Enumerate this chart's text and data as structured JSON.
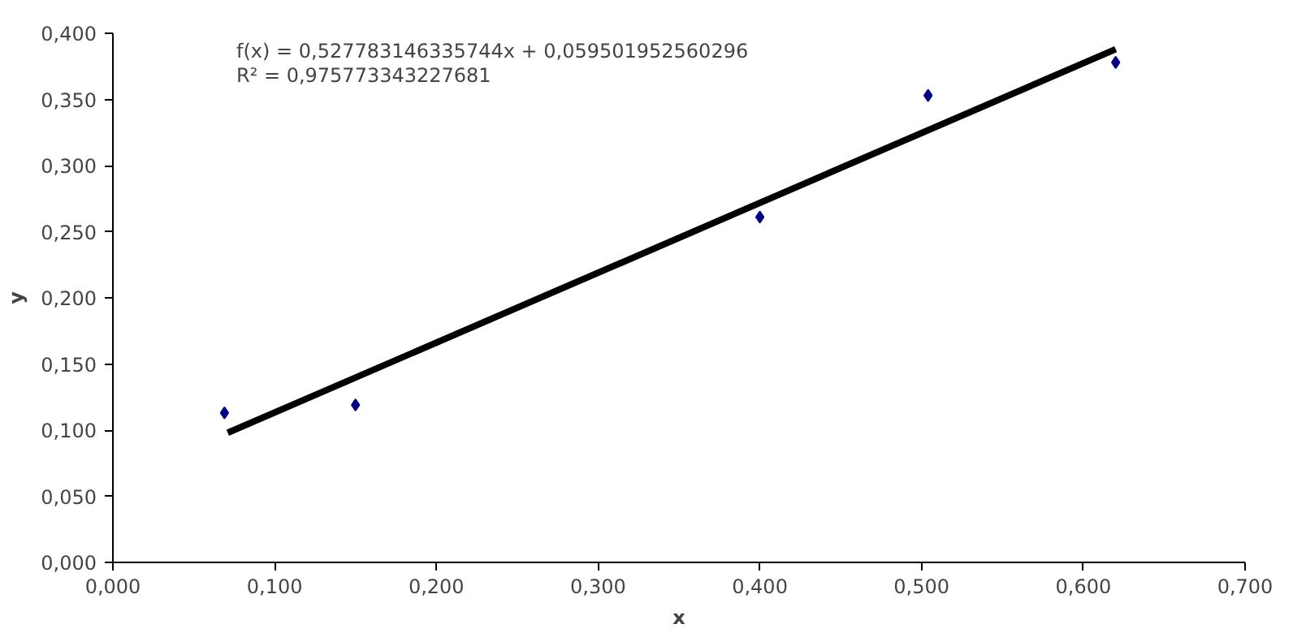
{
  "chart_data": {
    "type": "scatter",
    "xlabel": "x",
    "ylabel": "y",
    "xlim": [
      0,
      0.7
    ],
    "ylim": [
      0,
      0.4
    ],
    "xticks": [
      {
        "value": 0,
        "label": "0,000"
      },
      {
        "value": 0.1,
        "label": "0,100"
      },
      {
        "value": 0.2,
        "label": "0,200"
      },
      {
        "value": 0.3,
        "label": "0,300"
      },
      {
        "value": 0.4,
        "label": "0,400"
      },
      {
        "value": 0.5,
        "label": "0,500"
      },
      {
        "value": 0.6,
        "label": "0,600"
      },
      {
        "value": 0.7,
        "label": "0,700"
      }
    ],
    "yticks": [
      {
        "value": 0,
        "label": "0,000"
      },
      {
        "value": 0.05,
        "label": "0,050"
      },
      {
        "value": 0.1,
        "label": "0,100"
      },
      {
        "value": 0.15,
        "label": "0,150"
      },
      {
        "value": 0.2,
        "label": "0,200"
      },
      {
        "value": 0.25,
        "label": "0,250"
      },
      {
        "value": 0.3,
        "label": "0,300"
      },
      {
        "value": 0.35,
        "label": "0,350"
      },
      {
        "value": 0.4,
        "label": "0,400"
      }
    ],
    "grid": false,
    "marker": "diamond",
    "annotations": [
      "f(x) = 0,527783146335744x + 0,059501952560296",
      "R² = 0,975773343227681"
    ],
    "series": [
      {
        "color": "#000080",
        "x": [
          0.069,
          0.15,
          0.4,
          0.504,
          0.62
        ],
        "values": [
          0.113,
          0.119,
          0.261,
          0.353,
          0.378
        ]
      },
      {
        "type": "line",
        "marker": "none",
        "color": "#000000",
        "x": [
          0.071,
          0.62
        ],
        "values": [
          0.098,
          0.388
        ]
      }
    ]
  }
}
